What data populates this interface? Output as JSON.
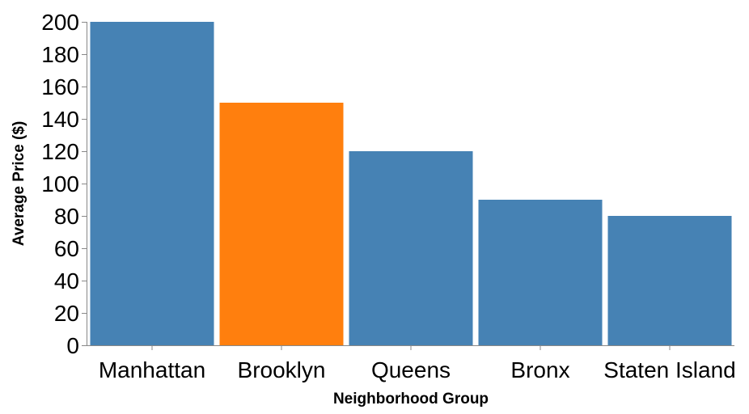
{
  "chart_data": {
    "type": "bar",
    "categories": [
      "Manhattan",
      "Brooklyn",
      "Queens",
      "Bronx",
      "Staten Island"
    ],
    "values": [
      200,
      150,
      120,
      90,
      80
    ],
    "highlight_category": "Brooklyn",
    "colors": {
      "default": "#4682b4",
      "highlight": "#ff7f0e"
    },
    "title": "",
    "xlabel": "Neighborhood Group",
    "ylabel": "Average Price ($)",
    "ylim": [
      0,
      200
    ],
    "yticks": [
      0,
      20,
      40,
      60,
      80,
      100,
      120,
      140,
      160,
      180,
      200
    ],
    "grid": false,
    "legend": "none"
  }
}
